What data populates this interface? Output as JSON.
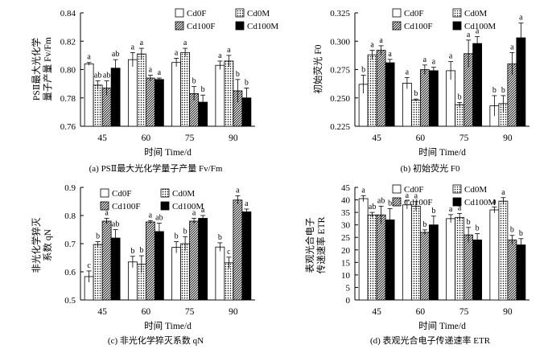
{
  "chart_data": [
    {
      "type": "bar",
      "panel": "a",
      "categories": [
        "45",
        "60",
        "75",
        "90"
      ],
      "ylabel_lines": [
        "PSⅡ最大光化学",
        "量子产量 Fv/Fm"
      ],
      "xlabel": "时间 Time/d",
      "caption": "(a)  PSⅡ最大光化学量子产量 Fv/Fm",
      "ylim": [
        0.76,
        0.84
      ],
      "yticks": [
        "0.76",
        "0.78",
        "0.80",
        "0.82",
        "0.84"
      ],
      "series": [
        {
          "name": "Cd0F",
          "values": [
            0.804,
            0.807,
            0.805,
            0.803
          ],
          "errors": [
            0.001,
            0.005,
            0.003,
            0.003
          ],
          "letters": [
            "a",
            "a",
            "a",
            "a"
          ]
        },
        {
          "name": "Cd0M",
          "values": [
            0.789,
            0.811,
            0.812,
            0.806
          ],
          "errors": [
            0.003,
            0.004,
            0.003,
            0.004
          ],
          "letters": [
            "ab",
            "a",
            "a",
            "a"
          ]
        },
        {
          "name": "Cd100F",
          "values": [
            0.787,
            0.794,
            0.783,
            0.785
          ],
          "errors": [
            0.005,
            0.002,
            0.005,
            0.008
          ],
          "letters": [
            "ab",
            "a",
            "b",
            "b"
          ]
        },
        {
          "name": "Cd100M",
          "values": [
            0.801,
            0.793,
            0.777,
            0.78
          ],
          "errors": [
            0.006,
            0.001,
            0.005,
            0.007
          ],
          "letters": [
            "ab",
            "a",
            "b",
            "b"
          ]
        }
      ]
    },
    {
      "type": "bar",
      "panel": "b",
      "categories": [
        "45",
        "60",
        "75",
        "90"
      ],
      "ylabel_lines": [
        "初始荧光 F0"
      ],
      "xlabel": "时间 Time/d",
      "caption": "(b)  初始荧光 F0",
      "ylim": [
        0.225,
        0.325
      ],
      "yticks": [
        "0.225",
        "0.250",
        "0.275",
        "0.300",
        "0.325"
      ],
      "series": [
        {
          "name": "Cd0F",
          "values": [
            0.262,
            0.263,
            0.274,
            0.243
          ],
          "errors": [
            0.008,
            0.005,
            0.008,
            0.009
          ],
          "letters": [
            "b",
            "a",
            "a",
            "b"
          ]
        },
        {
          "name": "Cd0M",
          "values": [
            0.288,
            0.248,
            0.244,
            0.245
          ],
          "errors": [
            0.004,
            0.001,
            0.002,
            0.007
          ],
          "letters": [
            "a",
            "b",
            "b",
            "b"
          ]
        },
        {
          "name": "Cd100F",
          "values": [
            0.292,
            0.275,
            0.289,
            0.28
          ],
          "errors": [
            0.004,
            0.004,
            0.012,
            0.01
          ],
          "letters": [
            "a",
            "a",
            "a",
            "a"
          ]
        },
        {
          "name": "Cd100M",
          "values": [
            0.281,
            0.274,
            0.298,
            0.303
          ],
          "errors": [
            0.003,
            0.003,
            0.006,
            0.013
          ],
          "letters": [
            "a",
            "a",
            "a",
            "a"
          ]
        }
      ]
    },
    {
      "type": "bar",
      "panel": "c",
      "categories": [
        "45",
        "60",
        "75",
        "90"
      ],
      "ylabel_lines": [
        "非光化学猝灭",
        "系数 qN"
      ],
      "xlabel": "时间 Time/d",
      "caption": "(c)  非光化学猝灭系数 qN",
      "ylim": [
        0.5,
        0.9
      ],
      "yticks": [
        "0.5",
        "0.6",
        "0.7",
        "0.8",
        "0.9"
      ],
      "series": [
        {
          "name": "Cd0F",
          "values": [
            0.583,
            0.635,
            0.687,
            0.688
          ],
          "errors": [
            0.02,
            0.02,
            0.02,
            0.015
          ],
          "letters": [
            "c",
            "b",
            "b",
            "b"
          ]
        },
        {
          "name": "Cd0M",
          "values": [
            0.697,
            0.627,
            0.7,
            0.632
          ],
          "errors": [
            0.01,
            0.03,
            0.025,
            0.02
          ],
          "letters": [
            "b",
            "b",
            "b",
            "c"
          ]
        },
        {
          "name": "Cd100F",
          "values": [
            0.78,
            0.777,
            0.78,
            0.855
          ],
          "errors": [
            0.01,
            0.005,
            0.01,
            0.015
          ],
          "letters": [
            "a",
            "a",
            "a",
            "a"
          ]
        },
        {
          "name": "Cd100M",
          "values": [
            0.72,
            0.743,
            0.79,
            0.813
          ],
          "errors": [
            0.03,
            0.03,
            0.01,
            0.01
          ],
          "letters": [
            "ab",
            "ab",
            "a",
            "a"
          ]
        }
      ]
    },
    {
      "type": "bar",
      "panel": "d",
      "categories": [
        "45",
        "60",
        "75",
        "90"
      ],
      "ylabel_lines": [
        "表观光合电子",
        "传递速率 ETR"
      ],
      "xlabel": "时间 Time/d",
      "caption": "(d)  表观光合电子传递速率 ETR",
      "ylim": [
        0,
        45
      ],
      "yticks": [
        "0",
        "5",
        "10",
        "15",
        "20",
        "25",
        "30",
        "35",
        "40",
        "45"
      ],
      "series": [
        {
          "name": "Cd0F",
          "values": [
            40.5,
            38.0,
            32.5,
            36.0
          ],
          "errors": [
            1.2,
            1.6,
            1.6,
            1.2
          ],
          "letters": [
            "a",
            "a",
            "a",
            "a"
          ]
        },
        {
          "name": "Cd0M",
          "values": [
            34.0,
            37.5,
            33.0,
            39.5
          ],
          "errors": [
            1.0,
            1.8,
            1.6,
            1.4
          ],
          "letters": [
            "ab",
            "a",
            "a",
            "a"
          ]
        },
        {
          "name": "Cd100F",
          "values": [
            34.0,
            27.0,
            26.0,
            24.0
          ],
          "errors": [
            3.5,
            1.0,
            3.0,
            1.8
          ],
          "letters": [
            "ab",
            "b",
            "b",
            "b"
          ]
        },
        {
          "name": "Cd100M",
          "values": [
            32.0,
            30.0,
            24.0,
            22.0
          ],
          "errors": [
            4.5,
            3.5,
            2.5,
            2.5
          ],
          "letters": [
            "b",
            "b",
            "b",
            "b"
          ]
        }
      ]
    }
  ]
}
